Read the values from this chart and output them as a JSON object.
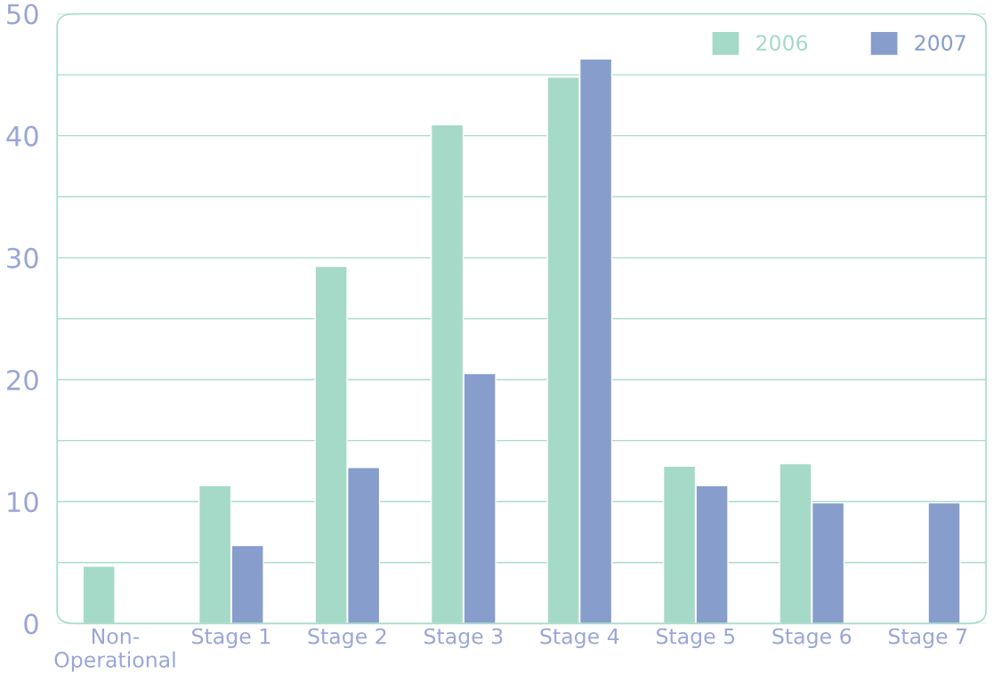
{
  "chart_data": {
    "type": "bar",
    "categories": [
      "Non-\nOperational",
      "Stage 1",
      "Stage 2",
      "Stage 3",
      "Stage 4",
      "Stage 5",
      "Stage 6",
      "Stage 7"
    ],
    "series": [
      {
        "name": "2006",
        "color": "#a5d9c8",
        "values": [
          4.7,
          11.3,
          29.3,
          40.9,
          44.8,
          12.9,
          13.1,
          null
        ]
      },
      {
        "name": "2007",
        "color": "#879dcc",
        "values": [
          null,
          6.4,
          12.8,
          20.5,
          46.3,
          11.3,
          9.9,
          9.9
        ]
      }
    ],
    "ylim": [
      0,
      50
    ],
    "yticks": [
      0,
      {
        "value": 5,
        "label": null
      },
      10,
      {
        "value": 15,
        "label": null
      },
      20,
      {
        "value": 25,
        "label": null
      },
      30,
      {
        "value": 35,
        "label": null
      },
      40,
      {
        "value": 45,
        "label": null
      },
      50
    ],
    "grid": "y",
    "legend": "top right"
  }
}
